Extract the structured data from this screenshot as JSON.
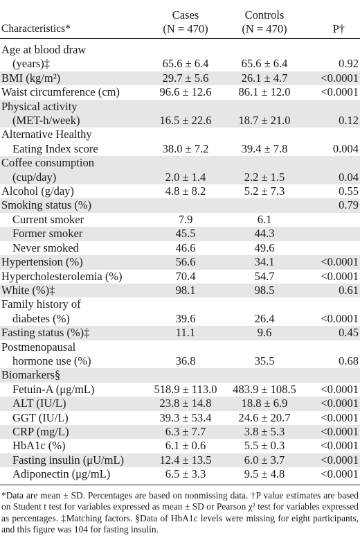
{
  "header": {
    "characteristics": "Characteristics*",
    "cases": "Cases",
    "cases_n": "(N = 470)",
    "controls": "Controls",
    "controls_n": "(N = 470)",
    "p": "P†"
  },
  "rows": [
    {
      "lines": [
        "Age at blood draw",
        "(years)‡"
      ],
      "cases": "65.6 ± 6.4",
      "controls": "65.6 ± 6.4",
      "p": "0.92"
    },
    {
      "lines": [
        "BMI (kg/m²)"
      ],
      "cases": "29.7 ± 5.6",
      "controls": "26.1 ± 4.7",
      "p": "<0.0001"
    },
    {
      "lines": [
        "Waist circumference (cm)"
      ],
      "cases": "96.6 ± 12.6",
      "controls": "86.1 ± 12.0",
      "p": "<0.0001"
    },
    {
      "lines": [
        "Physical activity",
        "(MET-h/week)"
      ],
      "cases": "16.5 ± 22.6",
      "controls": "18.7 ± 21.0",
      "p": "0.12"
    },
    {
      "lines": [
        "Alternative Healthy",
        "Eating Index score"
      ],
      "cases": "38.0 ± 7.2",
      "controls": "39.4 ± 7.8",
      "p": "0.004"
    },
    {
      "lines": [
        "Coffee consumption",
        "(cup/day)"
      ],
      "cases": "2.0 ± 1.4",
      "controls": "2.2 ± 1.5",
      "p": "0.04"
    },
    {
      "lines": [
        "Alcohol (g/day)"
      ],
      "cases": "4.8 ± 8.2",
      "controls": "5.2 ± 7.3",
      "p": "0.55"
    },
    {
      "lines": [
        "Smoking status (%)"
      ],
      "cases": "",
      "controls": "",
      "p": "0.79"
    },
    {
      "lines": [
        "Current smoker"
      ],
      "cases": "7.9",
      "controls": "6.1",
      "p": "",
      "indent": true
    },
    {
      "lines": [
        "Former smoker"
      ],
      "cases": "45.5",
      "controls": "44.3",
      "p": "",
      "indent": true
    },
    {
      "lines": [
        "Never smoked"
      ],
      "cases": "46.6",
      "controls": "49.6",
      "p": "",
      "indent": true
    },
    {
      "lines": [
        "Hypertension (%)"
      ],
      "cases": "56.6",
      "controls": "34.1",
      "p": "<0.0001"
    },
    {
      "lines": [
        "Hypercholesterolemia (%)"
      ],
      "cases": "70.4",
      "controls": "54.7",
      "p": "<0.0001"
    },
    {
      "lines": [
        "White (%)‡"
      ],
      "cases": "98.1",
      "controls": "98.5",
      "p": "0.61"
    },
    {
      "lines": [
        "Family history of",
        "diabetes (%)"
      ],
      "cases": "39.6",
      "controls": "26.4",
      "p": "<0.0001"
    },
    {
      "lines": [
        "Fasting status (%)‡"
      ],
      "cases": "11.1",
      "controls": "9.6",
      "p": "0.45"
    },
    {
      "lines": [
        "Postmenopausal",
        "hormone use (%)"
      ],
      "cases": "36.8",
      "controls": "35.5",
      "p": "0.68"
    },
    {
      "lines": [
        "Biomarkers§"
      ],
      "cases": "",
      "controls": "",
      "p": ""
    },
    {
      "lines": [
        "Fetuin-A (μg/mL)"
      ],
      "cases": "518.9 ± 113.0",
      "controls": "483.9 ± 108.5",
      "p": "<0.0001",
      "indent": true
    },
    {
      "lines": [
        "ALT (IU/L)"
      ],
      "cases": "23.8 ± 14.8",
      "controls": "18.8 ± 6.9",
      "p": "<0.0001",
      "indent": true
    },
    {
      "lines": [
        "GGT (IU/L)"
      ],
      "cases": "39.3 ± 53.4",
      "controls": "24.6 ± 20.7",
      "p": "<0.0001",
      "indent": true
    },
    {
      "lines": [
        "CRP (mg/L)"
      ],
      "cases": "6.3 ± 7.7",
      "controls": "3.8 ± 5.3",
      "p": "<0.0001",
      "indent": true
    },
    {
      "lines": [
        "HbA1c (%)"
      ],
      "cases": "6.1 ± 0.6",
      "controls": "5.5 ± 0.3",
      "p": "<0.0001",
      "indent": true
    },
    {
      "lines": [
        "Fasting insulin (μU/mL)"
      ],
      "cases": "12.4 ± 13.5",
      "controls": "6.0 ± 3.7",
      "p": "<0.0001",
      "indent": true
    },
    {
      "lines": [
        "Adiponectin (μg/mL)"
      ],
      "cases": "6.5 ± 3.3",
      "controls": "9.5 ± 4.8",
      "p": "<0.0001",
      "indent": true
    }
  ],
  "footnote": "*Data are mean ± SD. Percentages are based on nonmissing data. †P value estimates are based on Student t test for variables expressed as mean ± SD or Pearson χ² test for variables expressed as percentages. ‡Matching factors. §Data of HbA1c levels were missing for eight participants, and this figure was 104 for fasting insulin."
}
